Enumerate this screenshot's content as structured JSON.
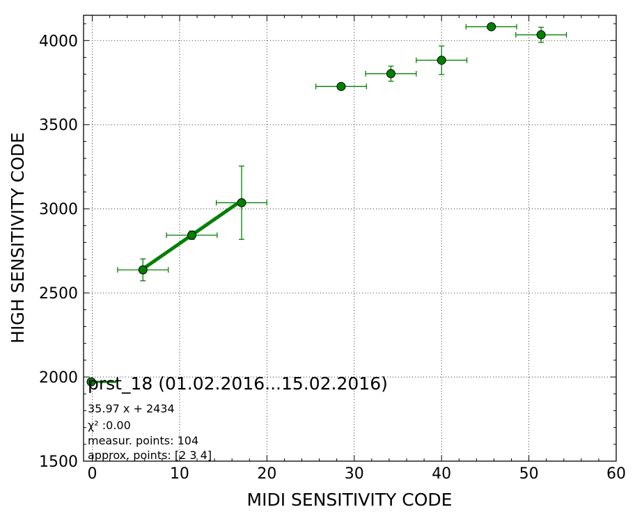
{
  "chart_data": {
    "type": "scatter",
    "xlabel": "MIDI SENSITIVITY CODE",
    "ylabel": "HIGH SENSITIVITY CODE",
    "xlim": [
      -1,
      60
    ],
    "ylim": [
      1500,
      4150
    ],
    "xticks": [
      0,
      10,
      20,
      30,
      40,
      50,
      60
    ],
    "xtick_labels": [
      "0",
      "10",
      "20",
      "30",
      "40",
      "50",
      "60"
    ],
    "yticks": [
      1500,
      2000,
      2500,
      3000,
      3500,
      4000
    ],
    "ytick_labels": [
      "1500",
      "2000",
      "2500",
      "3000",
      "3500",
      "4000"
    ],
    "grid": true,
    "legend_position": "lower-left",
    "colors": {
      "series": "#008000",
      "marker_edge": "#000000"
    },
    "series": [
      {
        "name": "prst_18 (01.02.2016...15.02.2016)",
        "points": [
          {
            "x": 5.8,
            "y": 2637,
            "xerr": 2.9,
            "yerr": 65
          },
          {
            "x": 11.4,
            "y": 2843,
            "xerr": 2.9,
            "yerr": 25
          },
          {
            "x": 17.1,
            "y": 3036,
            "xerr": 2.9,
            "yerr": 218
          },
          {
            "x": 28.5,
            "y": 3727,
            "xerr": 2.9,
            "yerr": 0
          },
          {
            "x": 34.2,
            "y": 3803,
            "xerr": 2.9,
            "yerr": 45
          },
          {
            "x": 40.0,
            "y": 3883,
            "xerr": 2.9,
            "yerr": 85
          },
          {
            "x": 45.7,
            "y": 4082,
            "xerr": 2.9,
            "yerr": 0
          },
          {
            "x": 51.4,
            "y": 4034,
            "xerr": 2.9,
            "yerr": 45
          }
        ]
      }
    ],
    "fit": {
      "slope": 35.97,
      "intercept": 2434,
      "x_range": [
        5.8,
        17.1
      ]
    },
    "annotations": [
      "35.97 x + 2434",
      "χ² :0.00",
      "measur. points: 104",
      "approx. points: [2 3 4]"
    ]
  }
}
